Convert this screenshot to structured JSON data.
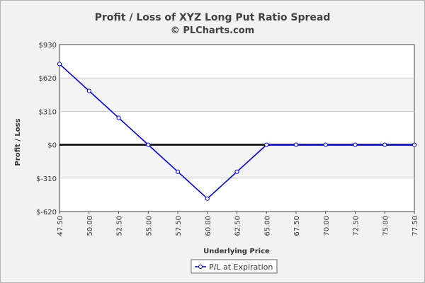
{
  "chart_data": {
    "type": "line",
    "title": "Profit / Loss of XYZ Long Put Ratio Spread",
    "subtitle": "© PLCharts.com",
    "xlabel": "Underlying Price",
    "ylabel": "Profit / Loss",
    "x_tick_labels": [
      "47.50",
      "50.00",
      "52.50",
      "55.00",
      "57.50",
      "60.00",
      "62.50",
      "65.00",
      "67.50",
      "70.00",
      "72.50",
      "75.00",
      "77.50"
    ],
    "y_tick_labels": [
      "$930",
      "$620",
      "$310",
      "$0",
      "$-310",
      "$-620"
    ],
    "y_ticks": [
      930,
      620,
      310,
      0,
      -310,
      -620
    ],
    "ylim": [
      -620,
      930
    ],
    "grid": true,
    "legend_position": "bottom-center",
    "series": [
      {
        "name": "P/L at Expiration",
        "color": "#0000ee",
        "x": [
          47.5,
          50.0,
          52.5,
          55.0,
          57.5,
          60.0,
          62.5,
          65.0,
          67.5,
          70.0,
          72.5,
          75.0,
          77.5
        ],
        "values": [
          750,
          500,
          250,
          0,
          -250,
          -500,
          -250,
          0,
          0,
          0,
          0,
          0,
          0
        ]
      }
    ]
  }
}
